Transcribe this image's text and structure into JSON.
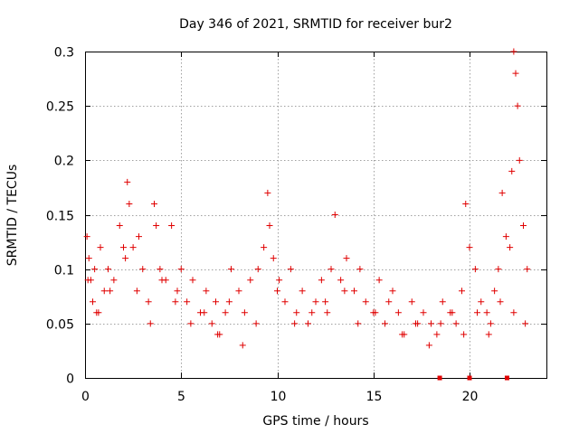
{
  "chart_data": {
    "type": "scatter",
    "title": "Day 346 of 2021, SRMTID for receiver bur2",
    "xlabel": "GPS time / hours",
    "ylabel": "SRMTID / TECUs",
    "xlim": [
      0,
      24
    ],
    "ylim": [
      0,
      0.3
    ],
    "x_ticks": [
      0,
      5,
      10,
      15,
      20
    ],
    "x_tick_labels": [
      "0",
      "5",
      "10",
      "15",
      "20"
    ],
    "y_ticks": [
      0,
      0.05,
      0.1,
      0.15,
      0.2,
      0.25,
      0.3
    ],
    "y_tick_labels": [
      "0",
      "0.05",
      "0.1",
      "0.15",
      "0.2",
      "0.25",
      "0.3"
    ],
    "grid": true,
    "legend": "none",
    "marker_color": "#e00000",
    "series": [
      {
        "name": "SRMTID",
        "marker": "plus",
        "x": [
          0.1,
          0.2,
          0.3,
          0.4,
          0.5,
          0.6,
          0.8,
          1.0,
          1.2,
          1.5,
          1.8,
          2.0,
          2.2,
          2.3,
          2.5,
          2.7,
          3.0,
          3.3,
          3.6,
          3.7,
          3.9,
          4.2,
          4.5,
          4.8,
          5.0,
          5.3,
          5.6,
          6.0,
          6.3,
          6.6,
          6.8,
          7.0,
          7.3,
          7.6,
          8.0,
          8.3,
          8.6,
          9.0,
          9.3,
          9.5,
          9.6,
          9.8,
          10.1,
          10.4,
          10.7,
          11.0,
          11.3,
          11.6,
          12.0,
          12.3,
          12.6,
          12.8,
          13.0,
          13.3,
          13.6,
          14.0,
          14.3,
          14.6,
          15.0,
          15.3,
          15.6,
          16.0,
          16.3,
          16.6,
          17.0,
          17.3,
          17.6,
          18.0,
          18.3,
          18.6,
          19.0,
          19.3,
          19.6,
          19.8,
          20.0,
          20.3,
          20.6,
          20.9,
          21.1,
          21.3,
          21.5,
          21.7,
          21.9,
          22.1,
          22.2,
          22.3,
          22.4,
          22.5,
          22.6,
          22.8,
          23.0,
          0.15,
          0.7,
          1.3,
          2.1,
          2.8,
          3.4,
          4.0,
          4.7,
          5.5,
          6.2,
          6.9,
          7.5,
          8.2,
          8.9,
          10.0,
          10.9,
          11.8,
          12.5,
          13.5,
          14.2,
          15.1,
          15.8,
          16.5,
          17.2,
          17.9,
          18.5,
          19.1,
          19.7,
          20.4,
          21.0,
          21.6,
          22.3,
          22.9
        ],
        "y": [
          0.13,
          0.11,
          0.09,
          0.07,
          0.1,
          0.06,
          0.12,
          0.08,
          0.1,
          0.09,
          0.14,
          0.12,
          0.18,
          0.16,
          0.12,
          0.08,
          0.1,
          0.07,
          0.16,
          0.14,
          0.1,
          0.09,
          0.14,
          0.08,
          0.1,
          0.07,
          0.09,
          0.06,
          0.08,
          0.05,
          0.07,
          0.04,
          0.06,
          0.1,
          0.08,
          0.06,
          0.09,
          0.1,
          0.12,
          0.17,
          0.14,
          0.11,
          0.09,
          0.07,
          0.1,
          0.06,
          0.08,
          0.05,
          0.07,
          0.09,
          0.06,
          0.1,
          0.15,
          0.09,
          0.11,
          0.08,
          0.1,
          0.07,
          0.06,
          0.09,
          0.05,
          0.08,
          0.06,
          0.04,
          0.07,
          0.05,
          0.06,
          0.05,
          0.04,
          0.07,
          0.06,
          0.05,
          0.08,
          0.16,
          0.12,
          0.1,
          0.07,
          0.06,
          0.05,
          0.08,
          0.1,
          0.17,
          0.13,
          0.12,
          0.19,
          0.3,
          0.28,
          0.25,
          0.2,
          0.14,
          0.1,
          0.09,
          0.06,
          0.08,
          0.11,
          0.13,
          0.05,
          0.09,
          0.07,
          0.05,
          0.06,
          0.04,
          0.07,
          0.03,
          0.05,
          0.08,
          0.05,
          0.06,
          0.07,
          0.08,
          0.05,
          0.06,
          0.07,
          0.04,
          0.05,
          0.03,
          0.05,
          0.06,
          0.04,
          0.06,
          0.04,
          0.07,
          0.06,
          0.05
        ]
      },
      {
        "name": "zero-level markers",
        "marker": "square",
        "x": [
          18.45,
          20.0,
          21.95
        ],
        "y": [
          0,
          0,
          0
        ]
      }
    ]
  }
}
